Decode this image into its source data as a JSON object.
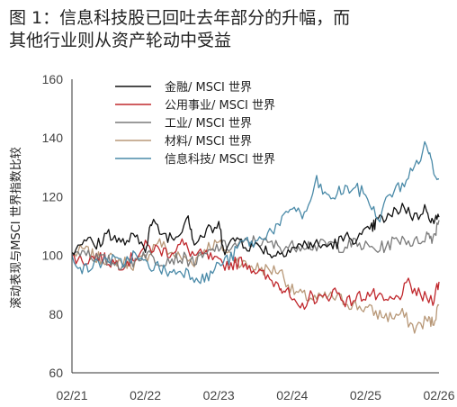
{
  "title": {
    "line1": "图 1：信息科技股已回吐去年部分的升幅，而",
    "line2": "其他行业则从资产轮动中受益"
  },
  "chart_data": {
    "type": "line",
    "ylabel": "滚动表现与MSCI 世界指数比较",
    "xlabel": "",
    "ylim": [
      60,
      160
    ],
    "yticks": [
      60,
      80,
      100,
      120,
      140,
      160
    ],
    "x_tick_labels": [
      "02/21",
      "02/22",
      "02/23",
      "02/24",
      "02/25",
      "02/26"
    ],
    "x_range": [
      "2021-02",
      "2026-02"
    ],
    "legend_position": "top-center",
    "grid": false,
    "series": [
      {
        "name": "金融/ MSCI 世界",
        "color": "#111111",
        "x": [
          "2021-02",
          "2021-04",
          "2021-06",
          "2021-08",
          "2021-10",
          "2021-12",
          "2022-02",
          "2022-03",
          "2022-05",
          "2022-07",
          "2022-09",
          "2022-10",
          "2022-12",
          "2023-02",
          "2023-03",
          "2023-05",
          "2023-07",
          "2023-09",
          "2023-11",
          "2024-01",
          "2024-03",
          "2024-05",
          "2024-07",
          "2024-09",
          "2024-11",
          "2025-01",
          "2025-03",
          "2025-04",
          "2025-06",
          "2025-08",
          "2025-10",
          "2025-12",
          "2026-01",
          "2026-02"
        ],
        "y": [
          101,
          106,
          103,
          108,
          104,
          106,
          103,
          111,
          107,
          106,
          114,
          104,
          108,
          110,
          102,
          106,
          103,
          103,
          100,
          102,
          103,
          104,
          103,
          104,
          106,
          106,
          109,
          112,
          113,
          117,
          113,
          116,
          111,
          113
        ]
      },
      {
        "name": "公用事业/ MSCI 世界",
        "color": "#c0282d",
        "x": [
          "2021-02",
          "2021-04",
          "2021-06",
          "2021-08",
          "2021-10",
          "2021-12",
          "2022-02",
          "2022-04",
          "2022-06",
          "2022-08",
          "2022-10",
          "2022-12",
          "2023-02",
          "2023-04",
          "2023-06",
          "2023-08",
          "2023-10",
          "2023-12",
          "2024-01",
          "2024-03",
          "2024-05",
          "2024-07",
          "2024-09",
          "2024-11",
          "2025-01",
          "2025-03",
          "2025-05",
          "2025-07",
          "2025-09",
          "2025-11",
          "2026-01",
          "2026-02"
        ],
        "y": [
          100,
          98,
          100,
          98,
          97,
          99,
          103,
          102,
          101,
          104,
          100,
          100,
          97,
          97,
          98,
          95,
          92,
          90,
          88,
          81,
          86,
          85,
          88,
          84,
          86,
          87,
          84,
          85,
          90,
          86,
          85,
          91
        ]
      },
      {
        "name": "工业/ MSCI 世界",
        "color": "#7a7a7a",
        "x": [
          "2021-02",
          "2021-04",
          "2021-06",
          "2021-08",
          "2021-10",
          "2021-12",
          "2022-02",
          "2022-04",
          "2022-06",
          "2022-08",
          "2022-10",
          "2022-12",
          "2023-02",
          "2023-04",
          "2023-06",
          "2023-08",
          "2023-10",
          "2023-12",
          "2024-02",
          "2024-04",
          "2024-06",
          "2024-08",
          "2024-10",
          "2024-12",
          "2025-02",
          "2025-04",
          "2025-06",
          "2025-08",
          "2025-10",
          "2025-12",
          "2026-01",
          "2026-02"
        ],
        "y": [
          100,
          102,
          99,
          98,
          97,
          98,
          101,
          98,
          99,
          99,
          98,
          100,
          103,
          103,
          104,
          105,
          104,
          103,
          103,
          104,
          103,
          104,
          103,
          104,
          103,
          102,
          104,
          106,
          104,
          107,
          106,
          112
        ]
      },
      {
        "name": "材料/ MSCI 世界",
        "color": "#b89878",
        "x": [
          "2021-02",
          "2021-04",
          "2021-06",
          "2021-08",
          "2021-10",
          "2021-12",
          "2022-02",
          "2022-04",
          "2022-06",
          "2022-08",
          "2022-10",
          "2022-12",
          "2023-02",
          "2023-04",
          "2023-06",
          "2023-08",
          "2023-10",
          "2023-12",
          "2024-02",
          "2024-04",
          "2024-06",
          "2024-08",
          "2024-10",
          "2024-12",
          "2025-02",
          "2025-04",
          "2025-06",
          "2025-08",
          "2025-10",
          "2025-12",
          "2026-01",
          "2026-02"
        ],
        "y": [
          100,
          102,
          99,
          99,
          98,
          97,
          99,
          105,
          101,
          99,
          98,
          103,
          104,
          100,
          97,
          96,
          95,
          95,
          88,
          86,
          85,
          86,
          85,
          83,
          82,
          80,
          79,
          80,
          75,
          78,
          77,
          83
        ]
      },
      {
        "name": "信息科技/ MSCI 世界",
        "color": "#4a8aa8",
        "x": [
          "2021-02",
          "2021-04",
          "2021-06",
          "2021-08",
          "2021-10",
          "2021-12",
          "2022-02",
          "2022-04",
          "2022-06",
          "2022-08",
          "2022-10",
          "2022-12",
          "2023-02",
          "2023-04",
          "2023-06",
          "2023-08",
          "2023-10",
          "2023-12",
          "2024-02",
          "2024-04",
          "2024-06",
          "2024-08",
          "2024-10",
          "2024-12",
          "2025-02",
          "2025-04",
          "2025-06",
          "2025-08",
          "2025-10",
          "2025-12",
          "2026-01",
          "2026-02"
        ],
        "y": [
          100,
          95,
          97,
          99,
          97,
          100,
          97,
          96,
          94,
          95,
          93,
          92,
          97,
          99,
          105,
          104,
          108,
          110,
          117,
          113,
          125,
          119,
          122,
          123,
          121,
          112,
          121,
          124,
          130,
          138,
          130,
          126
        ]
      }
    ]
  }
}
